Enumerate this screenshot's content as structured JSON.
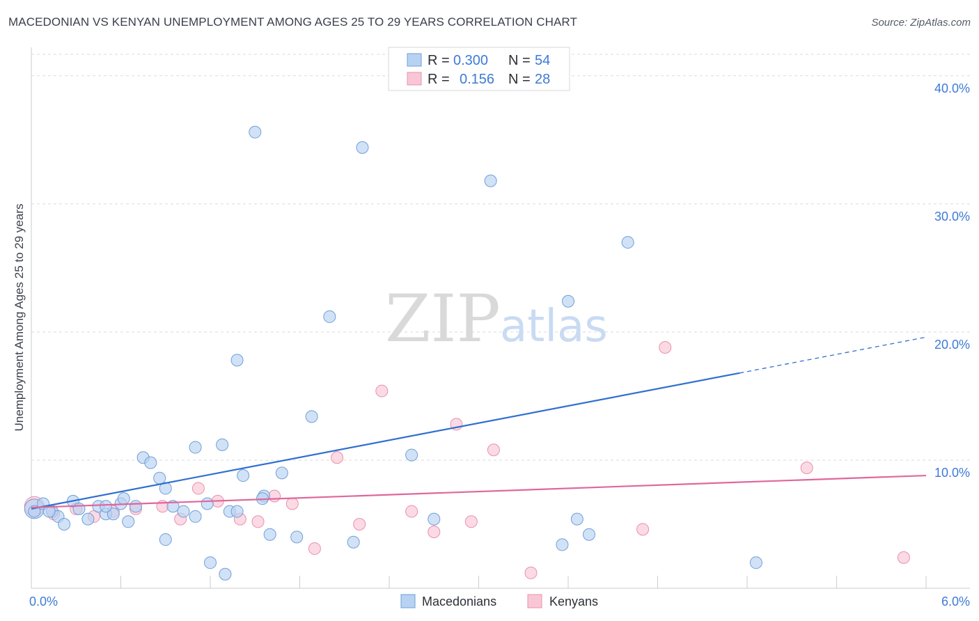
{
  "header": {
    "title": "MACEDONIAN VS KENYAN UNEMPLOYMENT AMONG AGES 25 TO 29 YEARS CORRELATION CHART",
    "source": "Source: ZipAtlas.com"
  },
  "watermark": {
    "zip": "ZIP",
    "atlas": "atlas"
  },
  "legend": {
    "macedonians": {
      "r_label": "R =",
      "r_value": "0.300",
      "n_label": "N =",
      "n_value": "54"
    },
    "kenyans": {
      "r_label": "R =",
      "r_value": "0.156",
      "n_label": "N =",
      "n_value": "28"
    }
  },
  "bottom_legend": {
    "macedonians": "Macedonians",
    "kenyans": "Kenyans"
  },
  "colors": {
    "macedonians_fill": "#b8d2f2",
    "macedonians_stroke": "#6f9fd8",
    "macedonians_line": "#2f6fd0",
    "kenyans_fill": "#f9c6d6",
    "kenyans_stroke": "#e990ad",
    "kenyans_line": "#e0679a",
    "grid": "#d8dbe0",
    "axis_text": "#3d7ad6"
  },
  "chart_data": {
    "type": "scatter",
    "title": "MACEDONIAN VS KENYAN UNEMPLOYMENT AMONG AGES 25 TO 29 YEARS CORRELATION CHART",
    "xlabel": "",
    "ylabel": "Unemployment Among Ages 25 to 29 years",
    "xlim": [
      0,
      6
    ],
    "ylim": [
      0,
      42
    ],
    "x_tick_labels": [
      {
        "value": 0,
        "label": "0.0%"
      },
      {
        "value": 6,
        "label": "6.0%"
      }
    ],
    "y_tick_labels": [
      {
        "value": 10,
        "label": "10.0%"
      },
      {
        "value": 20,
        "label": "20.0%"
      },
      {
        "value": 30,
        "label": "30.0%"
      },
      {
        "value": 40,
        "label": "40.0%"
      }
    ],
    "grid": true,
    "series": [
      {
        "name": "Macedonians",
        "points": [
          [
            0.02,
            6.2
          ],
          [
            0.08,
            6.6
          ],
          [
            0.14,
            6.0
          ],
          [
            0.18,
            5.6
          ],
          [
            0.22,
            5.0
          ],
          [
            0.28,
            6.8
          ],
          [
            0.32,
            6.2
          ],
          [
            0.38,
            5.4
          ],
          [
            0.45,
            6.4
          ],
          [
            0.5,
            5.8
          ],
          [
            0.55,
            5.8
          ],
          [
            0.6,
            6.6
          ],
          [
            0.65,
            5.2
          ],
          [
            0.62,
            7.0
          ],
          [
            0.7,
            6.4
          ],
          [
            0.75,
            10.2
          ],
          [
            0.8,
            9.8
          ],
          [
            0.86,
            8.6
          ],
          [
            0.9,
            3.8
          ],
          [
            0.95,
            6.4
          ],
          [
            1.02,
            6.0
          ],
          [
            1.1,
            5.6
          ],
          [
            1.18,
            6.6
          ],
          [
            1.2,
            2.0
          ],
          [
            1.28,
            11.2
          ],
          [
            1.3,
            1.1
          ],
          [
            1.33,
            6.0
          ],
          [
            1.38,
            17.8
          ],
          [
            1.42,
            8.8
          ],
          [
            1.5,
            35.6
          ],
          [
            1.56,
            7.2
          ],
          [
            1.6,
            4.2
          ],
          [
            1.68,
            9.0
          ],
          [
            1.78,
            4.0
          ],
          [
            1.88,
            13.4
          ],
          [
            2.0,
            21.2
          ],
          [
            2.16,
            3.6
          ],
          [
            2.22,
            34.4
          ],
          [
            2.55,
            10.4
          ],
          [
            2.7,
            5.4
          ],
          [
            3.08,
            31.8
          ],
          [
            3.56,
            3.4
          ],
          [
            3.6,
            22.4
          ],
          [
            3.66,
            5.4
          ],
          [
            3.74,
            4.2
          ],
          [
            4.0,
            27.0
          ],
          [
            4.86,
            2.0
          ],
          [
            1.38,
            6.0
          ],
          [
            0.02,
            6.0
          ],
          [
            0.5,
            6.4
          ],
          [
            0.9,
            7.8
          ],
          [
            1.1,
            11.0
          ],
          [
            1.55,
            7.0
          ],
          [
            0.12,
            6.0
          ]
        ],
        "trend": {
          "x0": 0.0,
          "y0": 6.2,
          "x1": 4.75,
          "y1": 16.8,
          "dashed_to_x": 6.0,
          "dashed_to_y": 19.6
        }
      },
      {
        "name": "Kenyans",
        "points": [
          [
            0.02,
            6.4
          ],
          [
            0.15,
            5.8
          ],
          [
            0.3,
            6.2
          ],
          [
            0.42,
            5.6
          ],
          [
            0.55,
            6.0
          ],
          [
            0.7,
            6.2
          ],
          [
            0.88,
            6.4
          ],
          [
            1.0,
            5.4
          ],
          [
            1.12,
            7.8
          ],
          [
            1.25,
            6.8
          ],
          [
            1.4,
            5.4
          ],
          [
            1.52,
            5.2
          ],
          [
            1.63,
            7.2
          ],
          [
            1.75,
            6.6
          ],
          [
            1.9,
            3.1
          ],
          [
            2.05,
            10.2
          ],
          [
            2.2,
            5.0
          ],
          [
            2.35,
            15.4
          ],
          [
            2.55,
            6.0
          ],
          [
            2.7,
            4.4
          ],
          [
            2.85,
            12.8
          ],
          [
            2.95,
            5.2
          ],
          [
            3.1,
            10.8
          ],
          [
            3.35,
            1.2
          ],
          [
            4.1,
            4.6
          ],
          [
            4.25,
            18.8
          ],
          [
            5.2,
            9.4
          ],
          [
            5.85,
            2.4
          ]
        ],
        "trend": {
          "x0": 0.0,
          "y0": 6.3,
          "x1": 6.0,
          "y1": 8.8
        }
      }
    ]
  }
}
